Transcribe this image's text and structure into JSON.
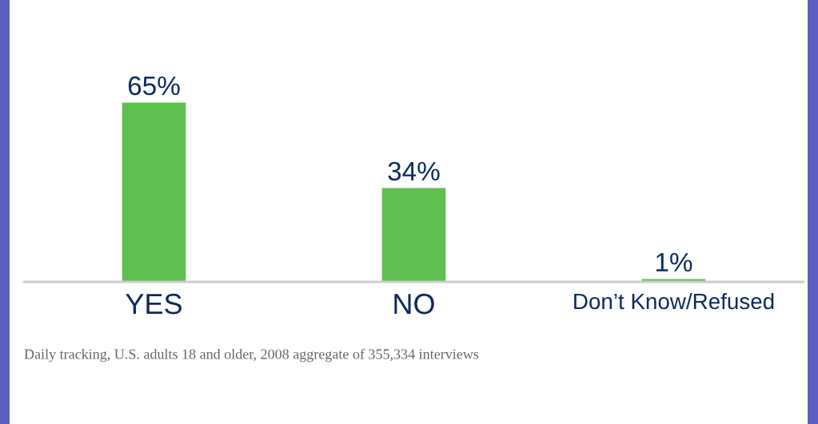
{
  "chart_data": {
    "type": "bar",
    "categories": [
      "YES",
      "NO",
      "Don’t Know/Refused"
    ],
    "values": [
      65,
      34,
      1
    ],
    "value_labels": [
      "65%",
      "34%",
      "1%"
    ],
    "color": "#5fbf50",
    "annotations": [
      "Daily tracking, U.S. adults 18 and older, 2008 aggregate of 355,334 interviews"
    ]
  }
}
